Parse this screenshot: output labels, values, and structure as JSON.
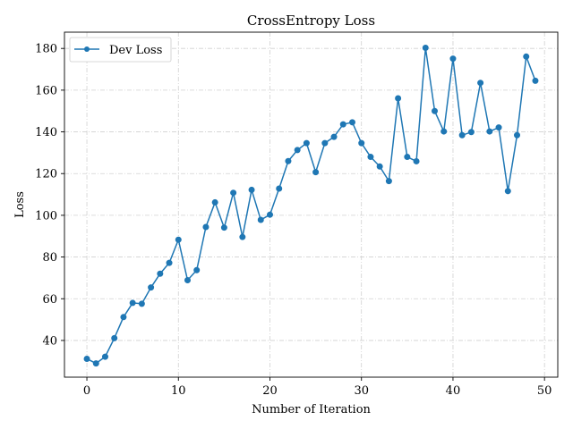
{
  "chart_data": {
    "type": "line",
    "title": "CrossEntropy Loss",
    "xlabel": "Number of Iteration",
    "ylabel": "Loss",
    "xlim": [
      -2.45,
      51.45
    ],
    "ylim": [
      22.4,
      187.8
    ],
    "xticks": [
      0,
      10,
      20,
      30,
      40,
      50
    ],
    "yticks": [
      40,
      60,
      80,
      100,
      120,
      140,
      160,
      180
    ],
    "grid": true,
    "legend_position": "top-left",
    "series": [
      {
        "name": "Dev Loss",
        "color": "#1f77b4",
        "marker": "circle",
        "x": [
          0,
          1,
          2,
          3,
          4,
          5,
          6,
          7,
          8,
          9,
          10,
          11,
          12,
          13,
          14,
          15,
          16,
          17,
          18,
          19,
          20,
          21,
          22,
          23,
          24,
          25,
          26,
          27,
          28,
          29,
          30,
          31,
          32,
          33,
          34,
          35,
          36,
          37,
          38,
          39,
          40,
          41,
          42,
          43,
          44,
          45,
          46,
          47,
          48,
          49
        ],
        "values": [
          31.2,
          29.0,
          32.2,
          41.1,
          51.2,
          58.0,
          57.6,
          65.4,
          72.0,
          77.2,
          88.3,
          68.9,
          73.7,
          94.4,
          106.2,
          94.1,
          110.8,
          89.6,
          112.2,
          97.8,
          100.3,
          112.8,
          126.0,
          131.3,
          134.6,
          120.7,
          134.6,
          137.6,
          143.6,
          144.6,
          134.6,
          128.0,
          123.4,
          116.4,
          156.1,
          128.0,
          125.9,
          180.3,
          150.0,
          140.2,
          175.1,
          138.4,
          139.9,
          163.5,
          140.2,
          142.1,
          111.6,
          138.4,
          176.1,
          164.5
        ]
      }
    ]
  }
}
